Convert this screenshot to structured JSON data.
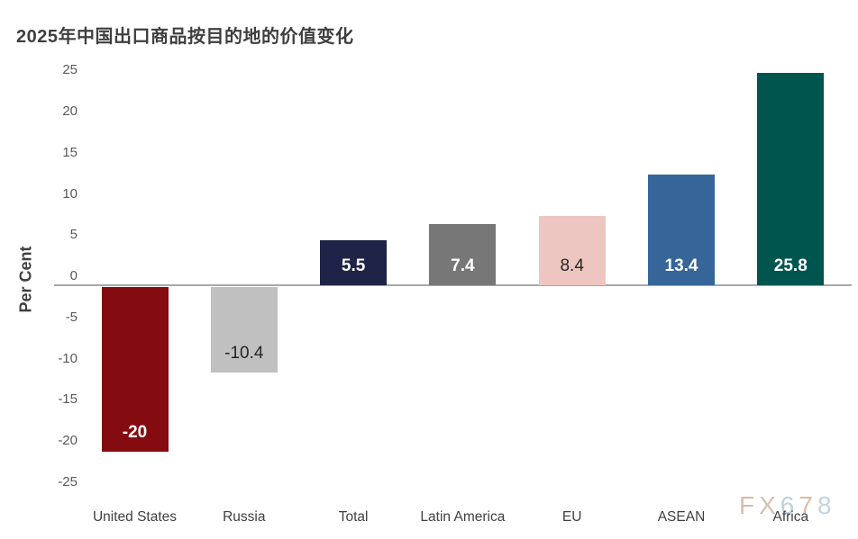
{
  "chart_data": {
    "type": "bar",
    "title": "2025年中国出口商品按目的地的价值变化",
    "ylabel": "Per Cent",
    "xlabel": "",
    "categories": [
      "United States",
      "Russia",
      "Total",
      "Latin America",
      "EU",
      "ASEAN",
      "Africa"
    ],
    "values": [
      -20,
      -10.4,
      5.5,
      7.4,
      8.4,
      13.4,
      25.8
    ],
    "value_labels": [
      "-20",
      "-10.4",
      "5.5",
      "7.4",
      "8.4",
      "13.4",
      "25.8"
    ],
    "bar_colors": [
      "#840C10",
      "#C0C0C0",
      "#1F2347",
      "#777777",
      "#EDC6C1",
      "#36659A",
      "#00564E"
    ],
    "value_label_colors": [
      "#FFFFFF",
      "#262626",
      "#FFFFFF",
      "#FFFFFF",
      "#262626",
      "#FFFFFF",
      "#FFFFFF"
    ],
    "yticks": [
      25,
      20,
      15,
      10,
      5,
      0,
      -5,
      -10,
      -15,
      -20,
      -25
    ],
    "ylim": [
      -25,
      25
    ],
    "grid": false,
    "legend": false,
    "axis_color": "#A8A8A8",
    "tick_label_color": "#595959",
    "category_label_color": "#404040",
    "title_color": "#3F3F3F"
  },
  "watermark": {
    "text": "FX678",
    "letters": [
      "F",
      "X",
      "6",
      "7",
      "8"
    ],
    "letter_colors": [
      "#D8BFA5",
      "#D3C1AE",
      "#BED1E1",
      "#D8BFA5",
      "#C2D4E3"
    ]
  }
}
